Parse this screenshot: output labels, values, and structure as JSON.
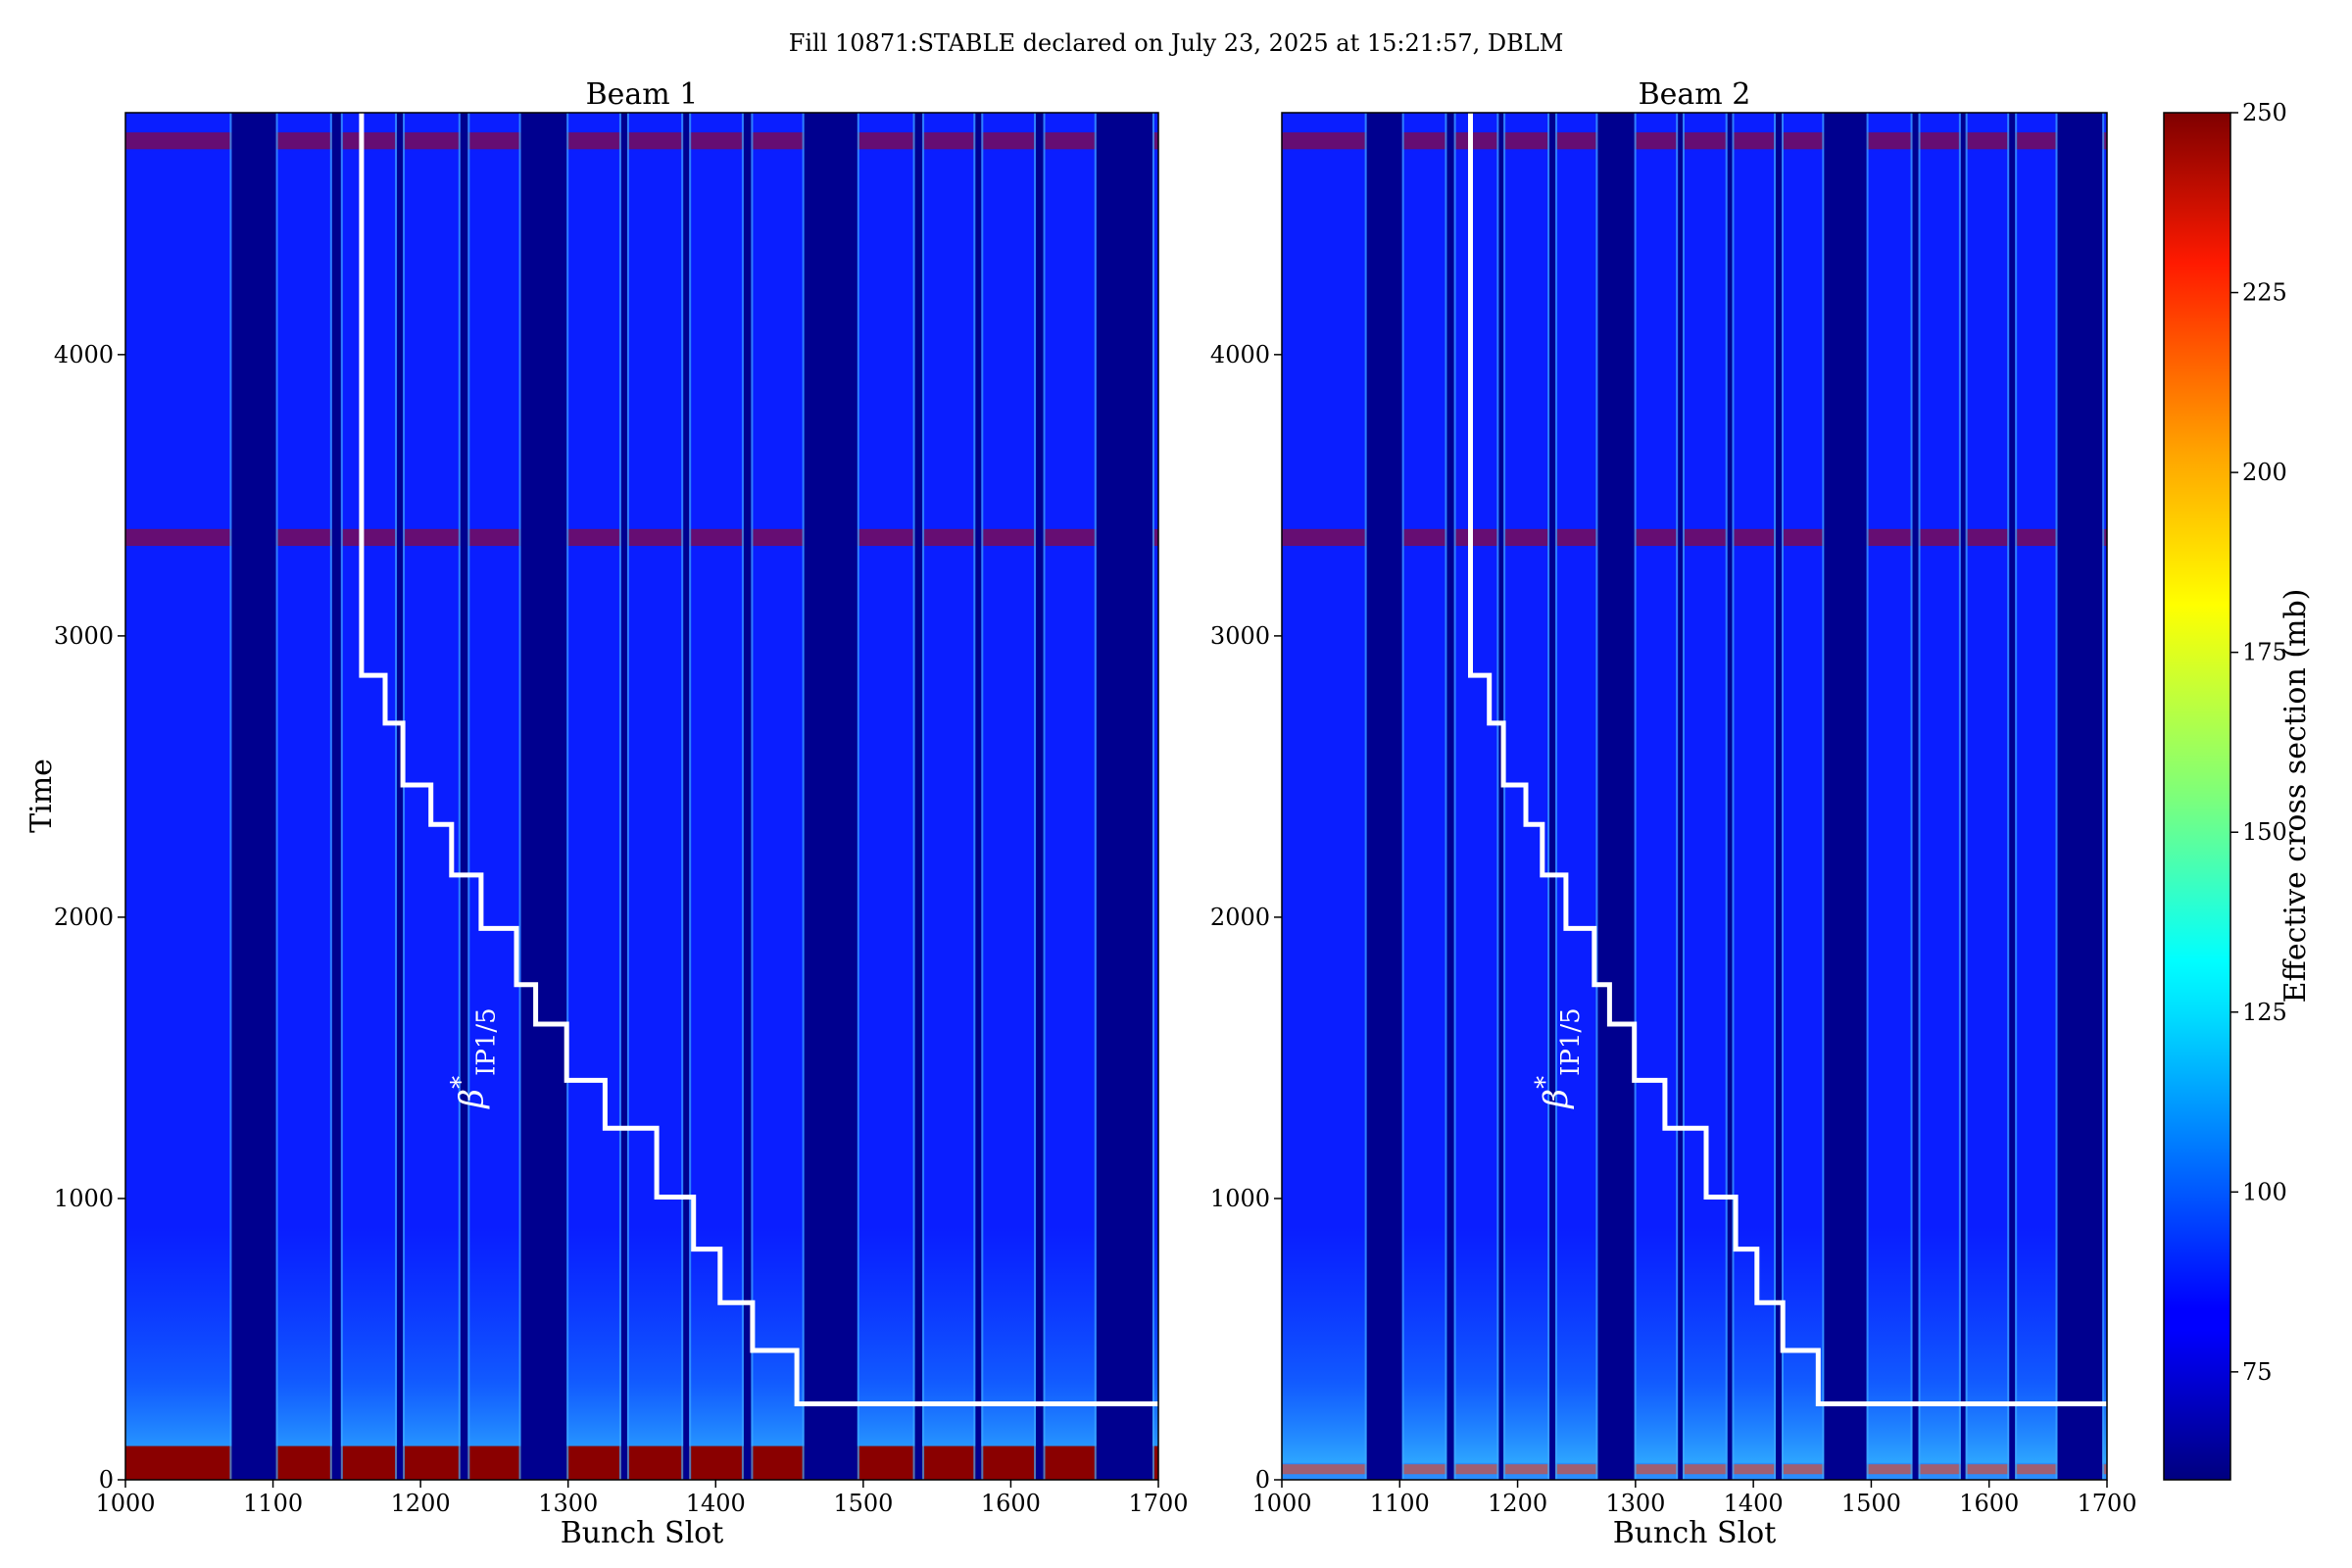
{
  "suptitle": "Fill 10871:STABLE declared on July 23, 2025 at 15:21:57, DBLM",
  "colorbar": {
    "label": "Effective cross section (mb)",
    "ticks": [
      75,
      100,
      125,
      150,
      175,
      200,
      225,
      250
    ],
    "range": [
      60,
      250
    ],
    "colormap": "jet"
  },
  "chart_data": [
    {
      "type": "heatmap",
      "title": "Beam 1",
      "xlabel": "Bunch Slot",
      "ylabel": "Time",
      "xlim": [
        1000,
        1700
      ],
      "ylim": [
        0,
        4860
      ],
      "xticks": [
        1000,
        1100,
        1200,
        1300,
        1400,
        1500,
        1600,
        1700
      ],
      "yticks": [
        0,
        1000,
        2000,
        3000,
        4000
      ],
      "empty_slot_ranges": [
        [
          1072,
          1102
        ],
        [
          1140,
          1146
        ],
        [
          1184,
          1188
        ],
        [
          1227,
          1232
        ],
        [
          1268,
          1299
        ],
        [
          1336,
          1340
        ],
        [
          1378,
          1382
        ],
        [
          1419,
          1424
        ],
        [
          1460,
          1496
        ],
        [
          1535,
          1540
        ],
        [
          1576,
          1580
        ],
        [
          1617,
          1622
        ],
        [
          1658,
          1696
        ]
      ],
      "overlay_label": "β*IP1/5",
      "beta_star_step_line": {
        "x": [
          1160,
          1160,
          1176,
          1176,
          1188,
          1188,
          1207,
          1207,
          1221,
          1221,
          1241,
          1241,
          1265,
          1265,
          1278,
          1278,
          1299,
          1299,
          1325,
          1325,
          1360,
          1360,
          1385,
          1385,
          1403,
          1403,
          1425,
          1425,
          1455,
          1455,
          1700
        ],
        "y": [
          4860,
          2860,
          2860,
          2690,
          2690,
          2470,
          2470,
          2330,
          2330,
          2150,
          2150,
          1960,
          1960,
          1760,
          1760,
          1620,
          1620,
          1420,
          1420,
          1250,
          1250,
          1005,
          1005,
          820,
          820,
          630,
          630,
          460,
          460,
          270,
          270
        ]
      }
    },
    {
      "type": "heatmap",
      "title": "Beam 2",
      "xlabel": "Bunch Slot",
      "ylabel": "",
      "xlim": [
        1000,
        1700
      ],
      "ylim": [
        0,
        4860
      ],
      "xticks": [
        1000,
        1100,
        1200,
        1300,
        1400,
        1500,
        1600,
        1700
      ],
      "yticks": [
        0,
        1000,
        2000,
        3000,
        4000
      ],
      "empty_slot_ranges": [
        [
          1072,
          1102
        ],
        [
          1140,
          1146
        ],
        [
          1184,
          1188
        ],
        [
          1227,
          1232
        ],
        [
          1268,
          1299
        ],
        [
          1336,
          1340
        ],
        [
          1378,
          1382
        ],
        [
          1419,
          1424
        ],
        [
          1460,
          1496
        ],
        [
          1535,
          1540
        ],
        [
          1576,
          1580
        ],
        [
          1617,
          1622
        ],
        [
          1658,
          1696
        ]
      ],
      "overlay_label": "β*IP1/5",
      "beta_star_step_line": {
        "x": [
          1160,
          1160,
          1176,
          1176,
          1188,
          1188,
          1207,
          1207,
          1221,
          1221,
          1241,
          1241,
          1265,
          1265,
          1278,
          1278,
          1299,
          1299,
          1325,
          1325,
          1360,
          1360,
          1385,
          1385,
          1403,
          1403,
          1425,
          1425,
          1455,
          1455,
          1700
        ],
        "y": [
          4860,
          2860,
          2860,
          2690,
          2690,
          2470,
          2470,
          2330,
          2330,
          2150,
          2150,
          1960,
          1960,
          1760,
          1760,
          1620,
          1620,
          1420,
          1420,
          1250,
          1250,
          1005,
          1005,
          820,
          820,
          630,
          630,
          460,
          460,
          270,
          270
        ]
      }
    }
  ]
}
